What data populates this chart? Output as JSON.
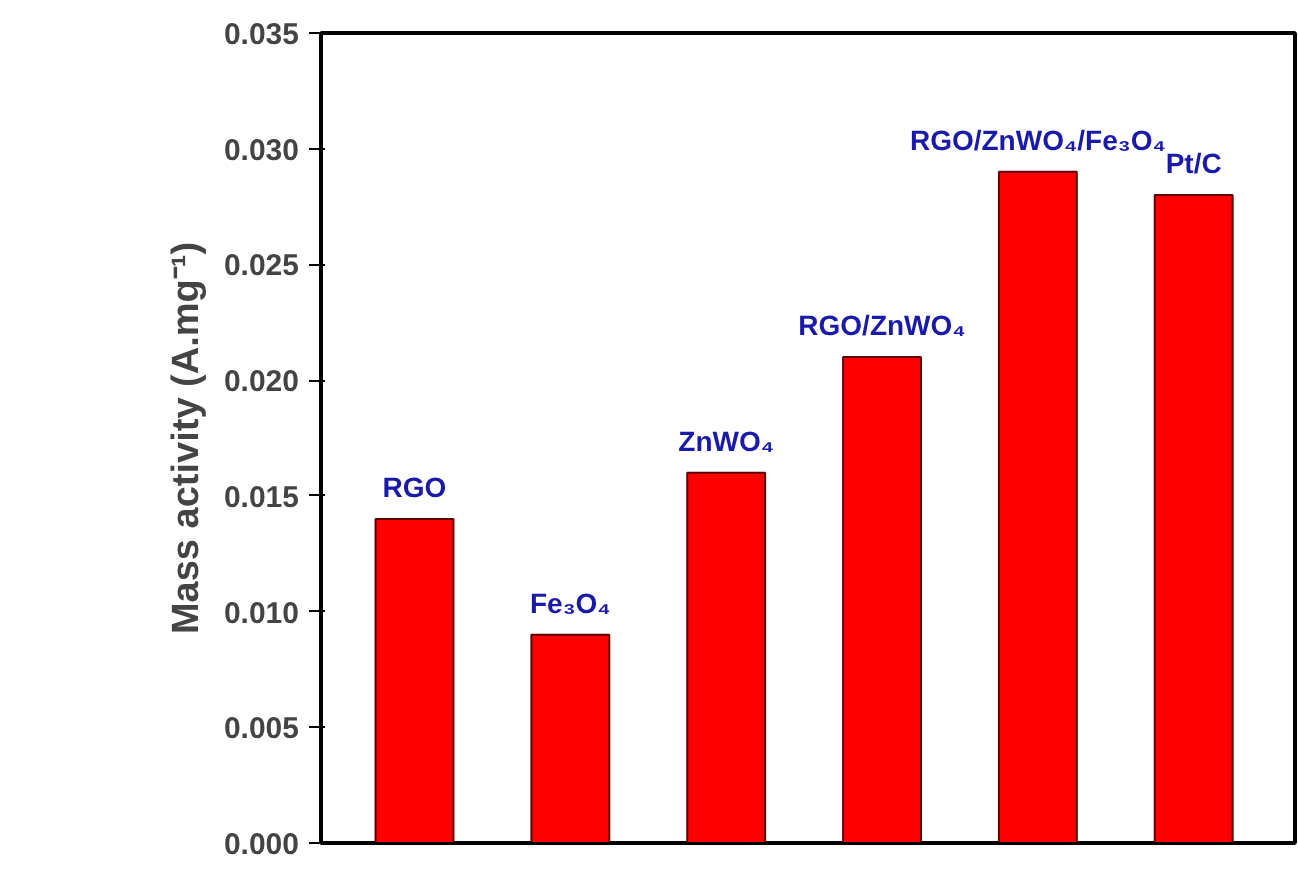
{
  "chart_data": {
    "type": "bar",
    "ylabel": "Mass activity (A.mg⁻¹)",
    "categories": [
      "RGO",
      "Fe₃O₄",
      "ZnWO₄",
      "RGO/ZnWO₄",
      "RGO/ZnWO₄/Fe₃O₄",
      "Pt/C"
    ],
    "values": [
      0.014,
      0.009,
      0.016,
      0.021,
      0.029,
      0.028
    ],
    "color": "#ff0000",
    "ylim": [
      0,
      0.035
    ],
    "yticks": [
      {
        "value": 0,
        "label": "0.000"
      },
      {
        "value": 0.005,
        "label": "0.005"
      },
      {
        "value": 0.01,
        "label": "0.010"
      },
      {
        "value": 0.015,
        "label": "0.015"
      },
      {
        "value": 0.02,
        "label": "0.020"
      },
      {
        "value": 0.025,
        "label": "0.025"
      },
      {
        "value": 0.03,
        "label": "0.030"
      },
      {
        "value": 0.035,
        "label": "0.035"
      }
    ],
    "tick_labels": "y",
    "grid": false
  }
}
